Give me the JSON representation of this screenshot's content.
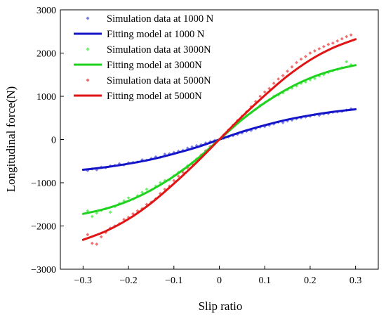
{
  "chart_data": {
    "type": "scatter",
    "title": "",
    "xlabel": "Slip ratio",
    "ylabel": "Longitudinal force(N)",
    "xlim": [
      -0.35,
      0.35
    ],
    "ylim": [
      -3000,
      3000
    ],
    "xticks": [
      -0.3,
      -0.2,
      -0.1,
      0,
      0.1,
      0.2,
      0.3
    ],
    "xtick_labels": [
      "−0.3",
      "−0.2",
      "−0.1",
      "0",
      "0.1",
      "0.2",
      "0.3"
    ],
    "yticks": [
      -3000,
      -2000,
      -1000,
      0,
      1000,
      2000,
      3000
    ],
    "ytick_labels": [
      "−3000",
      "−2000",
      "−1000",
      "0",
      "1000",
      "2000",
      "3000"
    ],
    "grid": false,
    "legend_position": "top-left",
    "series": [
      {
        "name": "Simulation data at 1000 N",
        "kind": "scatter",
        "marker": "diamond",
        "color": "#7d82e6",
        "x": [
          -0.29,
          -0.28,
          -0.27,
          -0.26,
          -0.25,
          -0.24,
          -0.23,
          -0.22,
          -0.21,
          -0.2,
          -0.19,
          -0.18,
          -0.17,
          -0.16,
          -0.15,
          -0.14,
          -0.13,
          -0.12,
          -0.11,
          -0.1,
          -0.09,
          -0.08,
          -0.07,
          -0.06,
          -0.05,
          -0.04,
          -0.03,
          -0.02,
          -0.01,
          0.0,
          0.01,
          0.02,
          0.03,
          0.04,
          0.05,
          0.06,
          0.07,
          0.08,
          0.09,
          0.1,
          0.11,
          0.12,
          0.13,
          0.14,
          0.15,
          0.16,
          0.17,
          0.18,
          0.19,
          0.2,
          0.21,
          0.22,
          0.23,
          0.24,
          0.25,
          0.26,
          0.27,
          0.28,
          0.29
        ],
        "y": [
          -720,
          -680,
          -700,
          -640,
          -650,
          -610,
          -600,
          -560,
          -590,
          -540,
          -530,
          -520,
          -470,
          -480,
          -440,
          -400,
          -410,
          -340,
          -330,
          -300,
          -270,
          -250,
          -200,
          -170,
          -140,
          -120,
          -80,
          -50,
          -20,
          0,
          30,
          60,
          90,
          120,
          150,
          190,
          210,
          250,
          290,
          300,
          330,
          360,
          400,
          390,
          430,
          450,
          480,
          500,
          520,
          540,
          570,
          560,
          590,
          600,
          630,
          640,
          650,
          680,
          710
        ]
      },
      {
        "name": "Fitting model at 1000 N",
        "kind": "line",
        "color": "#1414c8",
        "x": [
          -0.3,
          -0.25,
          -0.2,
          -0.15,
          -0.1,
          -0.05,
          0.0,
          0.05,
          0.1,
          0.15,
          0.2,
          0.25,
          0.3
        ],
        "y": [
          -700,
          -640,
          -560,
          -460,
          -330,
          -180,
          0,
          180,
          330,
          460,
          560,
          640,
          700
        ]
      },
      {
        "name": "Simulation data at 3000N",
        "kind": "scatter",
        "marker": "diamond",
        "color": "#6ef06e",
        "x": [
          -0.29,
          -0.28,
          -0.27,
          -0.26,
          -0.25,
          -0.24,
          -0.23,
          -0.22,
          -0.21,
          -0.2,
          -0.19,
          -0.18,
          -0.17,
          -0.16,
          -0.15,
          -0.14,
          -0.13,
          -0.12,
          -0.11,
          -0.1,
          -0.09,
          -0.08,
          -0.07,
          -0.06,
          -0.05,
          -0.04,
          -0.03,
          -0.02,
          -0.01,
          0.0,
          0.01,
          0.02,
          0.03,
          0.04,
          0.05,
          0.06,
          0.07,
          0.08,
          0.09,
          0.1,
          0.11,
          0.12,
          0.13,
          0.14,
          0.15,
          0.16,
          0.17,
          0.18,
          0.19,
          0.2,
          0.21,
          0.22,
          0.23,
          0.24,
          0.25,
          0.26,
          0.27,
          0.28,
          0.29
        ],
        "y": [
          -1650,
          -1780,
          -1700,
          -1640,
          -1600,
          -1680,
          -1550,
          -1480,
          -1420,
          -1350,
          -1380,
          -1300,
          -1220,
          -1150,
          -1170,
          -1080,
          -1000,
          -950,
          -930,
          -840,
          -760,
          -700,
          -610,
          -540,
          -450,
          -380,
          -280,
          -190,
          -90,
          0,
          100,
          200,
          290,
          380,
          470,
          550,
          620,
          700,
          790,
          850,
          920,
          1000,
          1030,
          1080,
          1150,
          1190,
          1240,
          1300,
          1330,
          1380,
          1410,
          1470,
          1500,
          1550,
          1590,
          1620,
          1660,
          1800,
          1730
        ]
      },
      {
        "name": "Fitting model at 3000N",
        "kind": "line",
        "color": "#1ed21e",
        "x": [
          -0.3,
          -0.25,
          -0.2,
          -0.15,
          -0.1,
          -0.05,
          0.0,
          0.05,
          0.1,
          0.15,
          0.2,
          0.25,
          0.3
        ],
        "y": [
          -1720,
          -1600,
          -1420,
          -1170,
          -850,
          -460,
          0,
          460,
          850,
          1170,
          1420,
          1600,
          1720
        ]
      },
      {
        "name": "Simulation data at 5000N",
        "kind": "scatter",
        "marker": "diamond",
        "color": "#f07070",
        "x": [
          -0.29,
          -0.28,
          -0.27,
          -0.26,
          -0.25,
          -0.24,
          -0.23,
          -0.22,
          -0.21,
          -0.2,
          -0.19,
          -0.18,
          -0.17,
          -0.16,
          -0.15,
          -0.14,
          -0.13,
          -0.12,
          -0.11,
          -0.1,
          -0.09,
          -0.08,
          -0.07,
          -0.06,
          -0.05,
          -0.04,
          -0.03,
          -0.02,
          -0.01,
          0.0,
          0.01,
          0.02,
          0.03,
          0.04,
          0.05,
          0.06,
          0.07,
          0.08,
          0.09,
          0.1,
          0.11,
          0.12,
          0.13,
          0.14,
          0.15,
          0.16,
          0.17,
          0.18,
          0.19,
          0.2,
          0.21,
          0.22,
          0.23,
          0.24,
          0.25,
          0.26,
          0.27,
          0.28,
          0.29
        ],
        "y": [
          -2200,
          -2400,
          -2420,
          -2250,
          -2150,
          -2050,
          -2000,
          -1950,
          -1850,
          -1800,
          -1720,
          -1650,
          -1600,
          -1500,
          -1450,
          -1370,
          -1250,
          -1150,
          -1080,
          -950,
          -850,
          -760,
          -650,
          -560,
          -460,
          -360,
          -260,
          -160,
          -80,
          0,
          110,
          220,
          330,
          440,
          540,
          640,
          760,
          880,
          1000,
          1100,
          1180,
          1300,
          1400,
          1480,
          1580,
          1680,
          1780,
          1860,
          1920,
          2000,
          2050,
          2100,
          2150,
          2200,
          2230,
          2280,
          2330,
          2380,
          2420
        ]
      },
      {
        "name": "Fitting model at 5000N",
        "kind": "line",
        "color": "#e01414",
        "x": [
          -0.3,
          -0.25,
          -0.2,
          -0.15,
          -0.1,
          -0.05,
          0.0,
          0.05,
          0.1,
          0.15,
          0.2,
          0.25,
          0.3
        ],
        "y": [
          -2320,
          -2120,
          -1840,
          -1470,
          -1020,
          -530,
          0,
          530,
          1020,
          1470,
          1840,
          2120,
          2320
        ]
      }
    ]
  }
}
